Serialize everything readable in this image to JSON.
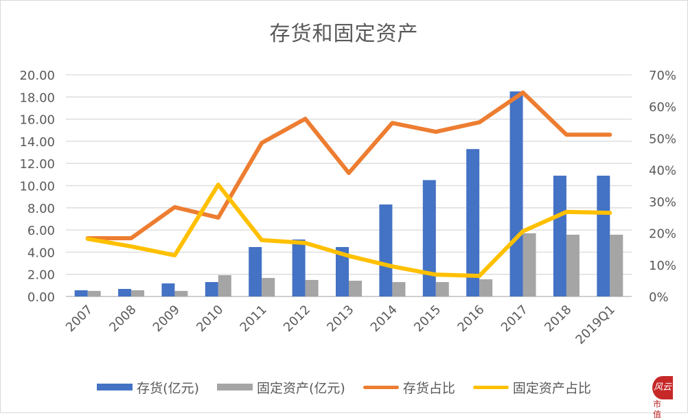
{
  "title": "存货和固定资产",
  "legend": [
    {
      "label": "存货(亿元)",
      "kind": "bar",
      "color": "#4472c4"
    },
    {
      "label": "固定资产(亿元)",
      "kind": "bar",
      "color": "#a5a5a5"
    },
    {
      "label": "存货占比",
      "kind": "line",
      "color": "#ed7d31"
    },
    {
      "label": "固定资产占比",
      "kind": "line",
      "color": "#ffc000"
    }
  ],
  "logo": {
    "seal_text": "风云",
    "text": "市值"
  },
  "chart_data": {
    "type": "bar",
    "title": "存货和固定资产",
    "xlabel": "",
    "ylabel": "",
    "categories": [
      "2007",
      "2008",
      "2009",
      "2010",
      "2011",
      "2012",
      "2013",
      "2014",
      "2015",
      "2016",
      "2017",
      "2018",
      "2019Q1"
    ],
    "series": [
      {
        "name": "存货(亿元)",
        "type": "bar",
        "axis": "left",
        "color": "#4472c4",
        "values": [
          0.56,
          0.68,
          1.18,
          1.3,
          4.46,
          5.14,
          4.46,
          8.3,
          10.5,
          13.3,
          18.5,
          10.9,
          10.9
        ]
      },
      {
        "name": "固定资产(亿元)",
        "type": "bar",
        "axis": "left",
        "color": "#a5a5a5",
        "values": [
          0.5,
          0.56,
          0.5,
          1.92,
          1.67,
          1.49,
          1.42,
          1.3,
          1.3,
          1.55,
          5.7,
          5.57,
          5.57
        ]
      },
      {
        "name": "存货占比",
        "type": "line",
        "axis": "right",
        "color": "#ed7d31",
        "values": [
          18.4,
          18.4,
          28.2,
          24.9,
          48.5,
          56.1,
          39.0,
          54.8,
          52.0,
          55.0,
          64.4,
          51.1,
          51.1
        ]
      },
      {
        "name": "固定资产占比",
        "type": "line",
        "axis": "right",
        "color": "#ffc000",
        "values": [
          18.2,
          15.8,
          13.0,
          35.3,
          17.8,
          16.9,
          12.8,
          9.5,
          6.9,
          6.5,
          20.6,
          26.7,
          26.4
        ]
      }
    ],
    "y_left": {
      "ticks": [
        "0.00",
        "2.00",
        "4.00",
        "6.00",
        "8.00",
        "10.00",
        "12.00",
        "14.00",
        "16.00",
        "18.00",
        "20.00"
      ],
      "ylim": [
        0,
        20
      ]
    },
    "y_right": {
      "ticks": [
        "0%",
        "10%",
        "20%",
        "30%",
        "40%",
        "50%",
        "60%",
        "70%"
      ],
      "ylim": [
        0,
        70
      ]
    },
    "grid": true,
    "legend_position": "bottom"
  }
}
